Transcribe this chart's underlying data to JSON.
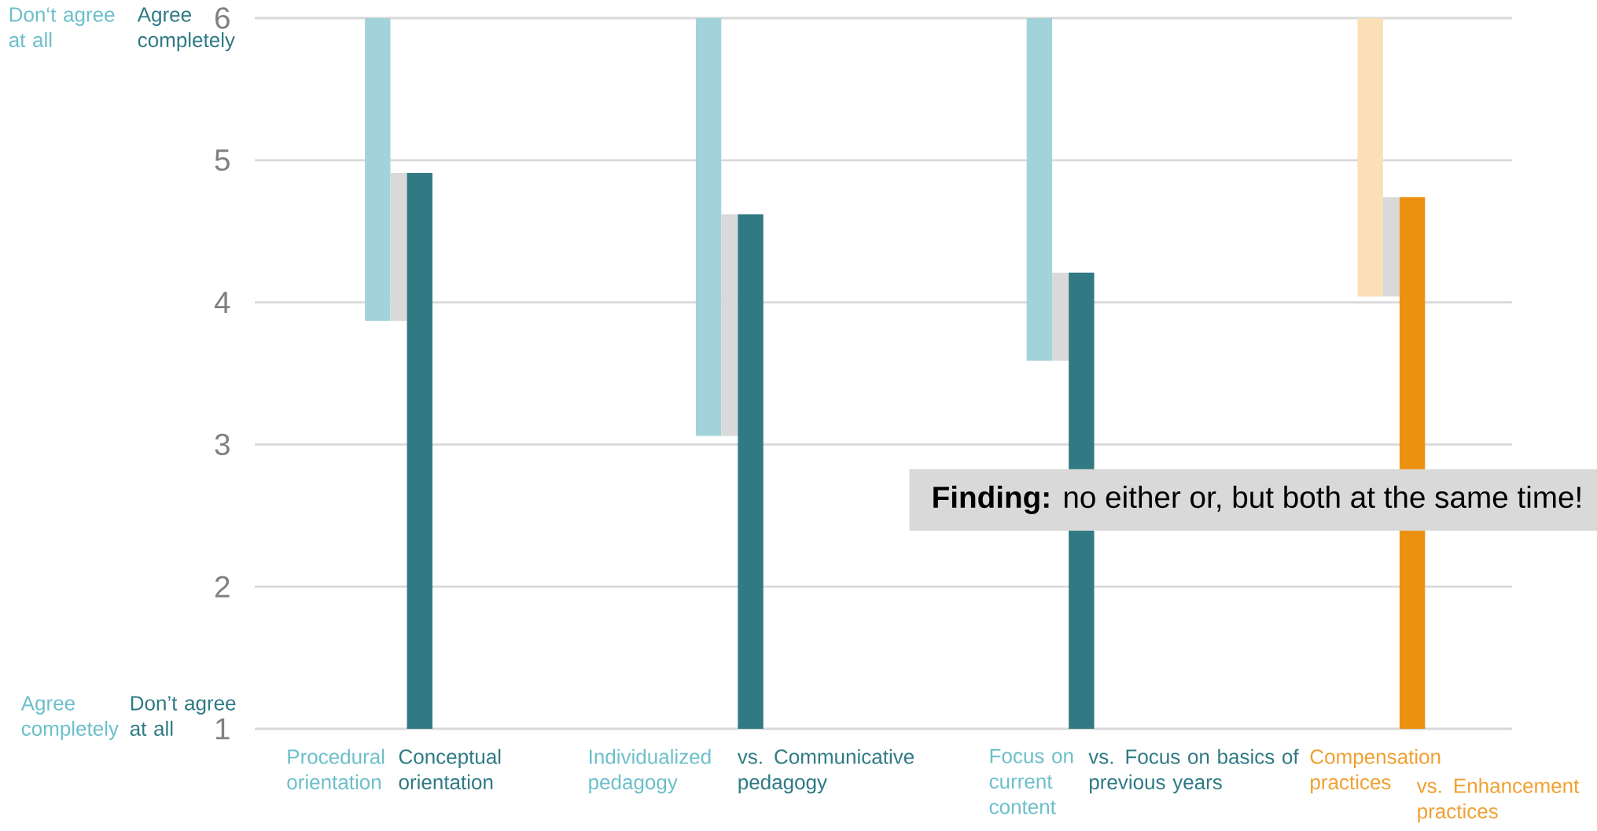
{
  "chart_data": {
    "type": "bar",
    "categories": [
      null,
      null,
      null,
      null
    ],
    "series": [
      {
        "colors": [
          "#a2d3db",
          "#a2d3db",
          "#a2d3db",
          "#fbdfb6"
        ],
        "base": [
          3.87,
          3.06,
          3.59,
          4.04
        ],
        "values": [
          2.13,
          2.94,
          2.41,
          1.96
        ]
      },
      {
        "color": "#d9d9d9",
        "base": [
          3.87,
          3.06,
          3.59,
          4.04
        ],
        "values": [
          1.04,
          1.56,
          0.62,
          0.7
        ]
      },
      {
        "colors": [
          "#317a84",
          "#317a84",
          "#317a84",
          "#ec910f"
        ],
        "base": [
          1,
          1,
          1,
          1
        ],
        "values": [
          3.91,
          3.62,
          3.21,
          3.74
        ]
      }
    ],
    "ylim": [
      1,
      6
    ],
    "yticks": [
      1,
      2,
      3,
      4,
      5,
      6
    ],
    "grid": "y",
    "annotations": [
      "Don‘t agree at all",
      "Agree completely",
      "Agree completely",
      "Don’t agree at all",
      "**Finding:** no either or, but both at the same time!",
      "Procedural orientation",
      "Conceptual orientation",
      "Individualized pedagogy",
      "vs. Communicative pedagogy",
      "Focus on current content",
      "vs. Focus on basics of previous years",
      "Compensation practices",
      "vs. Enhancement practices"
    ]
  }
}
